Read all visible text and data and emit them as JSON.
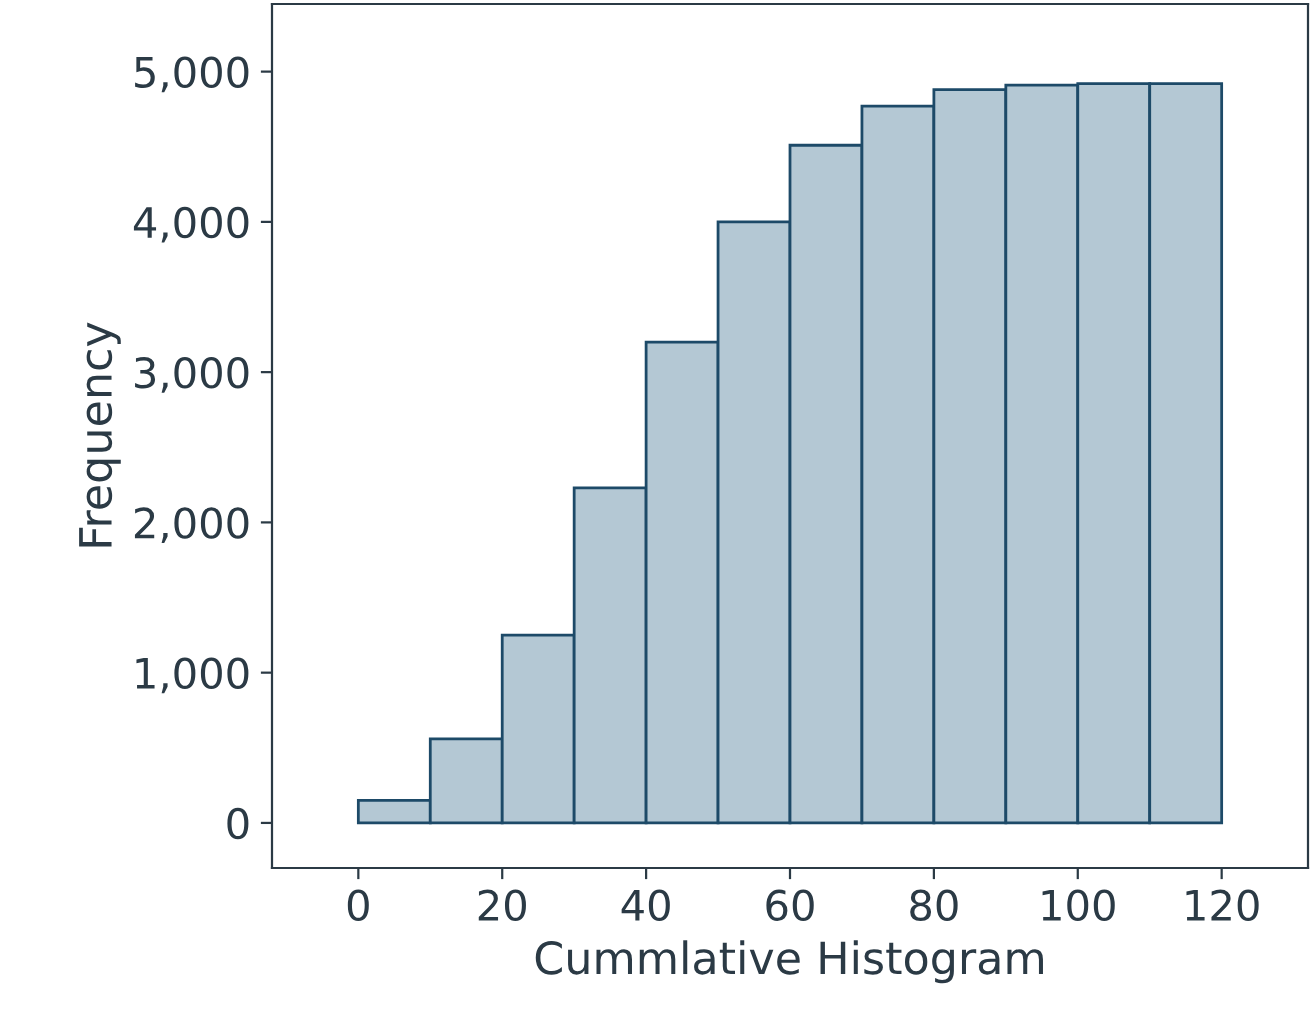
{
  "chart_data": {
    "type": "histogram",
    "xlabel": "Cummlative Histogram",
    "ylabel": "Frequency",
    "bins": [
      0,
      10,
      20,
      30,
      40,
      50,
      60,
      70,
      80,
      90,
      100,
      110,
      120
    ],
    "values": [
      150,
      560,
      1250,
      2230,
      3200,
      4000,
      4510,
      4770,
      4880,
      4910,
      4920,
      4920
    ],
    "color": "#b4c8d4",
    "xlim": [
      -12,
      132
    ],
    "ylim": [
      -300,
      5450
    ],
    "xticks": [
      0,
      20,
      40,
      60,
      80,
      100,
      120
    ],
    "yticks": [
      {
        "value": 0,
        "label": "0"
      },
      {
        "value": 1000,
        "label": "1,000"
      },
      {
        "value": 2000,
        "label": "2,000"
      },
      {
        "value": 3000,
        "label": "3,000"
      },
      {
        "value": 4000,
        "label": "4,000"
      },
      {
        "value": 5000,
        "label": "5,000"
      }
    ],
    "grid": false
  }
}
